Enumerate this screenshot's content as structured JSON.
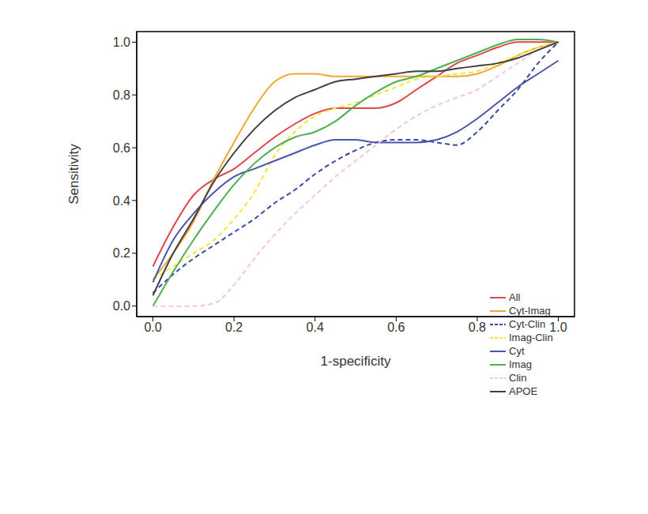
{
  "chart_data": {
    "type": "line",
    "x_label": "1-specificity",
    "y_label": "Sensitivity",
    "xlim": [
      -0.04,
      1.04
    ],
    "ylim": [
      -0.04,
      1.04
    ],
    "xticks": [
      {
        "value": 0,
        "label": "0.0"
      },
      0.2,
      0.4,
      0.6,
      0.8,
      {
        "value": 1,
        "label": "1.0"
      }
    ],
    "yticks": [
      {
        "value": 0,
        "label": "0.0"
      },
      0.2,
      0.4,
      0.6,
      0.8,
      {
        "value": 1,
        "label": "1.0"
      }
    ],
    "legend": "lower right",
    "grid": false,
    "x": [
      0,
      0.05,
      0.1,
      0.15,
      0.2,
      0.25,
      0.3,
      0.35,
      0.4,
      0.45,
      0.5,
      0.55,
      0.6,
      0.65,
      0.7,
      0.75,
      0.8,
      0.85,
      0.9,
      0.95,
      1
    ],
    "series": [
      {
        "name": "All",
        "color": "#e0454a",
        "line_style": "solid",
        "values": [
          0.15,
          0.3,
          0.42,
          0.48,
          0.52,
          0.58,
          0.64,
          0.69,
          0.73,
          0.75,
          0.75,
          0.75,
          0.77,
          0.82,
          0.87,
          0.92,
          0.95,
          0.98,
          1.0,
          1.0,
          1.0
        ]
      },
      {
        "name": "Cyt-Imag",
        "color": "#f0a830",
        "line_style": "solid",
        "values": [
          0.1,
          0.2,
          0.32,
          0.48,
          0.62,
          0.75,
          0.85,
          0.88,
          0.88,
          0.87,
          0.87,
          0.87,
          0.87,
          0.87,
          0.87,
          0.87,
          0.88,
          0.91,
          0.95,
          0.98,
          1.0
        ]
      },
      {
        "name": "Cyt-Clin",
        "color": "#3b4aa0",
        "line_style": "dashed",
        "values": [
          0.05,
          0.12,
          0.18,
          0.23,
          0.28,
          0.33,
          0.39,
          0.44,
          0.5,
          0.55,
          0.59,
          0.62,
          0.63,
          0.63,
          0.62,
          0.61,
          0.66,
          0.74,
          0.82,
          0.92,
          1.0
        ]
      },
      {
        "name": "Imag-Clin",
        "color": "#f5e63a",
        "line_style": "dashed",
        "values": [
          0.1,
          0.15,
          0.2,
          0.25,
          0.33,
          0.43,
          0.57,
          0.66,
          0.72,
          0.75,
          0.77,
          0.8,
          0.83,
          0.86,
          0.87,
          0.88,
          0.89,
          0.92,
          0.95,
          0.98,
          1.0
        ]
      },
      {
        "name": "Cyt",
        "color": "#4a56a8",
        "line_style": "solid",
        "values": [
          0.09,
          0.25,
          0.35,
          0.43,
          0.49,
          0.52,
          0.55,
          0.58,
          0.61,
          0.63,
          0.63,
          0.62,
          0.62,
          0.62,
          0.63,
          0.66,
          0.71,
          0.77,
          0.83,
          0.88,
          0.93
        ]
      },
      {
        "name": "Imag",
        "color": "#4caf50",
        "line_style": "solid",
        "values": [
          0.0,
          0.13,
          0.25,
          0.36,
          0.46,
          0.54,
          0.6,
          0.64,
          0.66,
          0.7,
          0.76,
          0.81,
          0.85,
          0.87,
          0.9,
          0.93,
          0.96,
          0.99,
          1.01,
          1.01,
          1.0
        ]
      },
      {
        "name": "Clin",
        "color": "#f5c6d6",
        "line_style": "dashed",
        "values": [
          0.0,
          0.0,
          0.0,
          0.01,
          0.08,
          0.18,
          0.27,
          0.35,
          0.42,
          0.49,
          0.55,
          0.61,
          0.67,
          0.72,
          0.76,
          0.79,
          0.82,
          0.87,
          0.92,
          0.97,
          1.0
        ]
      },
      {
        "name": "APOE",
        "color": "#404040",
        "line_style": "solid",
        "values": [
          0.04,
          0.2,
          0.33,
          0.47,
          0.58,
          0.67,
          0.74,
          0.79,
          0.82,
          0.85,
          0.86,
          0.87,
          0.88,
          0.89,
          0.89,
          0.9,
          0.91,
          0.92,
          0.94,
          0.97,
          1.0
        ]
      }
    ]
  }
}
